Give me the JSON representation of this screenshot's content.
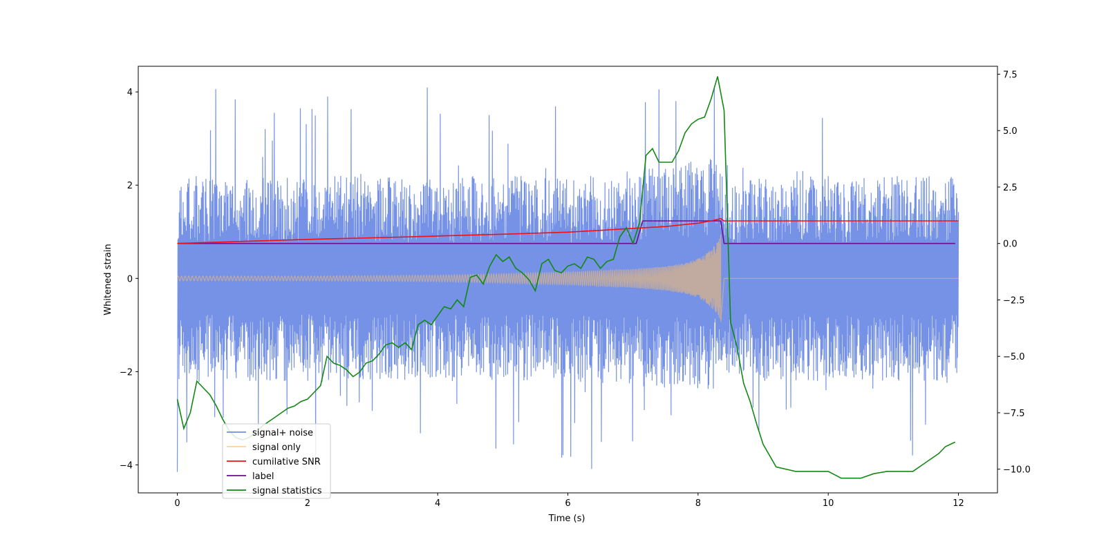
{
  "chart_data": {
    "type": "line",
    "xlabel": "Time (s)",
    "ylabel": "Whitened strain",
    "xlim": [
      -0.6,
      12.6
    ],
    "ylim": [
      -4.6,
      4.55
    ],
    "y2lim": [
      -11.05,
      7.85
    ],
    "x_ticks": [
      0,
      2,
      4,
      6,
      8,
      10,
      12
    ],
    "y_ticks": [
      -4,
      -2,
      0,
      2,
      4
    ],
    "y2_ticks": [
      -10.0,
      -7.5,
      -5.0,
      -2.5,
      0.0,
      2.5,
      5.0,
      7.5
    ],
    "grid": false,
    "legend_position": "lower-left",
    "series": [
      {
        "name": "signal+ noise",
        "axis": "left",
        "color": "#6f8ce6",
        "envelope": {
          "x": [
            0,
            1,
            2,
            3,
            4,
            5,
            6,
            7,
            7.8,
            8.2,
            8.35,
            8.4,
            9,
            10,
            11,
            12
          ],
          "typical_high": [
            2.2,
            2.2,
            2.2,
            2.2,
            2.2,
            2.2,
            2.2,
            2.3,
            2.5,
            2.6,
            2.5,
            2.0,
            2.2,
            2.2,
            2.2,
            2.2
          ],
          "typical_low": [
            -2.2,
            -2.2,
            -2.2,
            -2.2,
            -2.2,
            -2.2,
            -2.2,
            -2.3,
            -2.4,
            -2.5,
            -2.4,
            -2.0,
            -2.2,
            -2.2,
            -2.2,
            -2.2
          ],
          "peak_high": 4.1,
          "peak_low": -4.15
        }
      },
      {
        "name": "signal only",
        "axis": "left",
        "color": "#ffbf66",
        "amplitude": {
          "x": [
            0,
            2,
            4,
            5,
            6,
            7,
            7.5,
            7.8,
            8.0,
            8.1,
            8.2,
            8.3,
            8.35
          ],
          "values": [
            0.05,
            0.05,
            0.07,
            0.1,
            0.14,
            0.2,
            0.26,
            0.33,
            0.42,
            0.5,
            0.62,
            0.8,
            0.95
          ]
        }
      },
      {
        "name": "cumilative SNR",
        "axis": "right",
        "color": "#ee1111",
        "x": [
          0,
          1,
          2,
          3,
          4,
          5,
          6,
          6.5,
          7,
          7.5,
          7.8,
          8.0,
          8.2,
          8.35,
          8.4,
          12
        ],
        "values": [
          0.0,
          0.09,
          0.18,
          0.25,
          0.33,
          0.41,
          0.5,
          0.58,
          0.67,
          0.75,
          0.84,
          0.9,
          1.0,
          1.1,
          1.0,
          1.0
        ]
      },
      {
        "name": "label",
        "axis": "right",
        "color": "#6a0d91",
        "x": [
          0,
          7.05,
          7.15,
          8.35,
          8.4,
          11.95
        ],
        "values": [
          0.0,
          0.0,
          1.0,
          1.0,
          0.0,
          0.0
        ]
      },
      {
        "name": "signal statistics",
        "axis": "right",
        "color": "#118811",
        "x": [
          0,
          0.1,
          0.2,
          0.3,
          0.4,
          0.5,
          0.6,
          0.7,
          0.8,
          0.9,
          1.0,
          1.1,
          1.2,
          1.3,
          1.4,
          1.5,
          1.6,
          1.7,
          1.8,
          1.9,
          2.0,
          2.1,
          2.2,
          2.3,
          2.4,
          2.5,
          2.6,
          2.7,
          2.8,
          2.9,
          3.0,
          3.1,
          3.2,
          3.3,
          3.4,
          3.5,
          3.6,
          3.7,
          3.8,
          3.9,
          4.0,
          4.1,
          4.2,
          4.3,
          4.4,
          4.5,
          4.6,
          4.7,
          4.8,
          4.9,
          5.0,
          5.1,
          5.2,
          5.3,
          5.4,
          5.5,
          5.6,
          5.7,
          5.8,
          5.9,
          6.0,
          6.1,
          6.2,
          6.3,
          6.4,
          6.5,
          6.6,
          6.7,
          6.8,
          6.9,
          7.0,
          7.1,
          7.2,
          7.3,
          7.4,
          7.5,
          7.6,
          7.7,
          7.8,
          7.9,
          8.0,
          8.1,
          8.2,
          8.3,
          8.4,
          8.5,
          8.6,
          8.7,
          8.8,
          8.9,
          9.0,
          9.2,
          9.5,
          9.8,
          10.0,
          10.2,
          10.5,
          10.7,
          10.9,
          11.1,
          11.3,
          11.5,
          11.7,
          11.8,
          11.95
        ],
        "values": [
          -6.9,
          -8.2,
          -7.5,
          -6.1,
          -6.4,
          -6.7,
          -7.2,
          -7.8,
          -8.3,
          -8.6,
          -8.7,
          -8.6,
          -8.4,
          -8.1,
          -7.9,
          -7.7,
          -7.5,
          -7.3,
          -7.2,
          -7.0,
          -6.9,
          -6.6,
          -6.3,
          -5.0,
          -5.3,
          -5.4,
          -5.6,
          -5.9,
          -5.7,
          -5.3,
          -5.2,
          -4.9,
          -4.5,
          -4.4,
          -4.6,
          -4.4,
          -4.7,
          -3.6,
          -3.4,
          -3.6,
          -3.2,
          -2.8,
          -2.9,
          -2.5,
          -2.8,
          -1.5,
          -1.4,
          -1.8,
          -1.0,
          -0.5,
          -0.8,
          -0.6,
          -1.1,
          -1.3,
          -1.6,
          -2.1,
          -0.9,
          -0.7,
          -1.2,
          -1.3,
          -1.0,
          -0.9,
          -1.1,
          -0.6,
          -0.7,
          -1.1,
          -0.8,
          -0.7,
          0.3,
          0.7,
          0.0,
          0.9,
          3.9,
          4.2,
          3.6,
          3.6,
          3.6,
          4.1,
          4.9,
          5.3,
          5.5,
          5.6,
          6.4,
          7.4,
          5.9,
          -3.5,
          -4.6,
          -6.2,
          -7.0,
          -8.0,
          -8.9,
          -9.9,
          -10.1,
          -10.1,
          -10.1,
          -10.4,
          -10.4,
          -10.2,
          -10.1,
          -10.1,
          -10.1,
          -9.7,
          -9.3,
          -9.0,
          -8.8
        ]
      }
    ]
  }
}
